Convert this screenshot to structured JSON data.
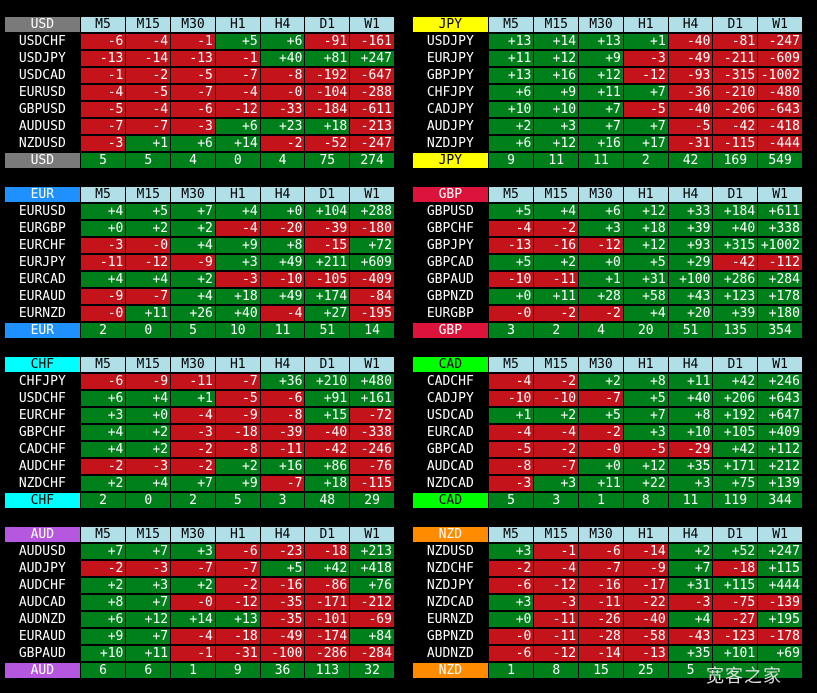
{
  "columns": [
    "M5",
    "M15",
    "M30",
    "H1",
    "H4",
    "D1",
    "W1"
  ],
  "panels": [
    {
      "currency": "USD",
      "color": "#7a7a7a",
      "text": "#fff",
      "rows": [
        [
          "USDCHF",
          "-6",
          "-4",
          "-1",
          "+5",
          "+6",
          "-91",
          "-161"
        ],
        [
          "USDJPY",
          "-13",
          "-14",
          "-13",
          "-1",
          "+40",
          "+81",
          "+247"
        ],
        [
          "USDCAD",
          "-1",
          "-2",
          "-5",
          "-7",
          "-8",
          "-192",
          "-647"
        ],
        [
          "EURUSD",
          "-4",
          "-5",
          "-7",
          "-4",
          "-0",
          "-104",
          "-288"
        ],
        [
          "GBPUSD",
          "-5",
          "-4",
          "-6",
          "-12",
          "-33",
          "-184",
          "-611"
        ],
        [
          "AUDUSD",
          "-7",
          "-7",
          "-3",
          "+6",
          "+23",
          "+18",
          "-213"
        ],
        [
          "NZDUSD",
          "-3",
          "+1",
          "+6",
          "+14",
          "-2",
          "-52",
          "-247"
        ]
      ],
      "summary": [
        "5",
        "5",
        "4",
        "0",
        "4",
        "75",
        "274"
      ]
    },
    {
      "currency": "JPY",
      "color": "#ffff00",
      "text": "#000",
      "rows": [
        [
          "USDJPY",
          "+13",
          "+14",
          "+13",
          "+1",
          "-40",
          "-81",
          "-247"
        ],
        [
          "EURJPY",
          "+11",
          "+12",
          "+9",
          "-3",
          "-49",
          "-211",
          "-609"
        ],
        [
          "GBPJPY",
          "+13",
          "+16",
          "+12",
          "-12",
          "-93",
          "-315",
          "-1002"
        ],
        [
          "CHFJPY",
          "+6",
          "+9",
          "+11",
          "+7",
          "-36",
          "-210",
          "-480"
        ],
        [
          "CADJPY",
          "+10",
          "+10",
          "+7",
          "-5",
          "-40",
          "-206",
          "-643"
        ],
        [
          "AUDJPY",
          "+2",
          "+3",
          "+7",
          "+7",
          "-5",
          "-42",
          "-418"
        ],
        [
          "NZDJPY",
          "+6",
          "+12",
          "+16",
          "+17",
          "-31",
          "-115",
          "-444"
        ]
      ],
      "summary": [
        "9",
        "11",
        "11",
        "2",
        "42",
        "169",
        "549"
      ]
    },
    {
      "currency": "EUR",
      "color": "#1e90ff",
      "text": "#fff",
      "rows": [
        [
          "EURUSD",
          "+4",
          "+5",
          "+7",
          "+4",
          "+0",
          "+104",
          "+288"
        ],
        [
          "EURGBP",
          "+0",
          "+2",
          "+2",
          "-4",
          "-20",
          "-39",
          "-180"
        ],
        [
          "EURCHF",
          "-3",
          "-0",
          "+4",
          "+9",
          "+8",
          "-15",
          "+72"
        ],
        [
          "EURJPY",
          "-11",
          "-12",
          "-9",
          "+3",
          "+49",
          "+211",
          "+609"
        ],
        [
          "EURCAD",
          "+4",
          "+4",
          "+2",
          "-3",
          "-10",
          "-105",
          "-409"
        ],
        [
          "EURAUD",
          "-9",
          "-7",
          "+4",
          "+18",
          "+49",
          "+174",
          "-84"
        ],
        [
          "EURNZD",
          "-0",
          "+11",
          "+26",
          "+40",
          "-4",
          "+27",
          "-195"
        ]
      ],
      "summary": [
        "2",
        "0",
        "5",
        "10",
        "11",
        "51",
        "14"
      ]
    },
    {
      "currency": "GBP",
      "color": "#dc143c",
      "text": "#fff",
      "rows": [
        [
          "GBPUSD",
          "+5",
          "+4",
          "+6",
          "+12",
          "+33",
          "+184",
          "+611"
        ],
        [
          "GBPCHF",
          "-4",
          "-2",
          "+3",
          "+18",
          "+39",
          "+40",
          "+338"
        ],
        [
          "GBPJPY",
          "-13",
          "-16",
          "-12",
          "+12",
          "+93",
          "+315",
          "+1002"
        ],
        [
          "GBPCAD",
          "+5",
          "+2",
          "+0",
          "+5",
          "+29",
          "-42",
          "-112"
        ],
        [
          "GBPAUD",
          "-10",
          "-11",
          "+1",
          "+31",
          "+100",
          "+286",
          "+284"
        ],
        [
          "GBPNZD",
          "+0",
          "+11",
          "+28",
          "+58",
          "+43",
          "+123",
          "+178"
        ],
        [
          "EURGBP",
          "-0",
          "-2",
          "-2",
          "+4",
          "+20",
          "+39",
          "+180"
        ]
      ],
      "summary": [
        "3",
        "2",
        "4",
        "20",
        "51",
        "135",
        "354"
      ]
    },
    {
      "currency": "CHF",
      "color": "#00ffff",
      "text": "#000",
      "rows": [
        [
          "CHFJPY",
          "-6",
          "-9",
          "-11",
          "-7",
          "+36",
          "+210",
          "+480"
        ],
        [
          "USDCHF",
          "+6",
          "+4",
          "+1",
          "-5",
          "-6",
          "+91",
          "+161"
        ],
        [
          "EURCHF",
          "+3",
          "+0",
          "-4",
          "-9",
          "-8",
          "+15",
          "-72"
        ],
        [
          "GBPCHF",
          "+4",
          "+2",
          "-3",
          "-18",
          "-39",
          "-40",
          "-338"
        ],
        [
          "CADCHF",
          "+4",
          "+2",
          "-2",
          "-8",
          "-11",
          "-42",
          "-246"
        ],
        [
          "AUDCHF",
          "-2",
          "-3",
          "-2",
          "+2",
          "+16",
          "+86",
          "-76"
        ],
        [
          "NZDCHF",
          "+2",
          "+4",
          "+7",
          "+9",
          "-7",
          "+18",
          "-115"
        ]
      ],
      "summary": [
        "2",
        "0",
        "2",
        "5",
        "3",
        "48",
        "29"
      ]
    },
    {
      "currency": "CAD",
      "color": "#00ff00",
      "text": "#000",
      "rows": [
        [
          "CADCHF",
          "-4",
          "-2",
          "+2",
          "+8",
          "+11",
          "+42",
          "+246"
        ],
        [
          "CADJPY",
          "-10",
          "-10",
          "-7",
          "+5",
          "+40",
          "+206",
          "+643"
        ],
        [
          "USDCAD",
          "+1",
          "+2",
          "+5",
          "+7",
          "+8",
          "+192",
          "+647"
        ],
        [
          "EURCAD",
          "-4",
          "-4",
          "-2",
          "+3",
          "+10",
          "+105",
          "+409"
        ],
        [
          "GBPCAD",
          "-5",
          "-2",
          "-0",
          "-5",
          "-29",
          "+42",
          "+112"
        ],
        [
          "AUDCAD",
          "-8",
          "-7",
          "+0",
          "+12",
          "+35",
          "+171",
          "+212"
        ],
        [
          "NZDCAD",
          "-3",
          "+3",
          "+11",
          "+22",
          "+3",
          "+75",
          "+139"
        ]
      ],
      "summary": [
        "5",
        "3",
        "1",
        "8",
        "11",
        "119",
        "344"
      ]
    },
    {
      "currency": "AUD",
      "color": "#b657e0",
      "text": "#fff",
      "rows": [
        [
          "AUDUSD",
          "+7",
          "+7",
          "+3",
          "-6",
          "-23",
          "-18",
          "+213"
        ],
        [
          "AUDJPY",
          "-2",
          "-3",
          "-7",
          "-7",
          "+5",
          "+42",
          "+418"
        ],
        [
          "AUDCHF",
          "+2",
          "+3",
          "+2",
          "-2",
          "-16",
          "-86",
          "+76"
        ],
        [
          "AUDCAD",
          "+8",
          "+7",
          "-0",
          "-12",
          "-35",
          "-171",
          "-212"
        ],
        [
          "AUDNZD",
          "+6",
          "+12",
          "+14",
          "+13",
          "-35",
          "-101",
          "-69"
        ],
        [
          "EURAUD",
          "+9",
          "+7",
          "-4",
          "-18",
          "-49",
          "-174",
          "+84"
        ],
        [
          "GBPAUD",
          "+10",
          "+11",
          "-1",
          "-31",
          "-100",
          "-286",
          "-284"
        ]
      ],
      "summary": [
        "6",
        "6",
        "1",
        "9",
        "36",
        "113",
        "32"
      ]
    },
    {
      "currency": "NZD",
      "color": "#ff8c00",
      "text": "#fff",
      "rows": [
        [
          "NZDUSD",
          "+3",
          "-1",
          "-6",
          "-14",
          "+2",
          "+52",
          "+247"
        ],
        [
          "NZDCHF",
          "-2",
          "-4",
          "-7",
          "-9",
          "+7",
          "-18",
          "+115"
        ],
        [
          "NZDJPY",
          "-6",
          "-12",
          "-16",
          "-17",
          "+31",
          "+115",
          "+444"
        ],
        [
          "NZDCAD",
          "+3",
          "-3",
          "-11",
          "-22",
          "-3",
          "-75",
          "-139"
        ],
        [
          "EURNZD",
          "+0",
          "-11",
          "-26",
          "-40",
          "+4",
          "-27",
          "+195"
        ],
        [
          "GBPNZD",
          "-0",
          "-11",
          "-28",
          "-58",
          "-43",
          "-123",
          "-178"
        ],
        [
          "AUDNZD",
          "-6",
          "-12",
          "-14",
          "-13",
          "+35",
          "+101",
          "+69"
        ]
      ],
      "summary": [
        "1",
        "8",
        "15",
        "25",
        "5",
        "",
        ""
      ]
    }
  ],
  "watermark": "宽客之家"
}
